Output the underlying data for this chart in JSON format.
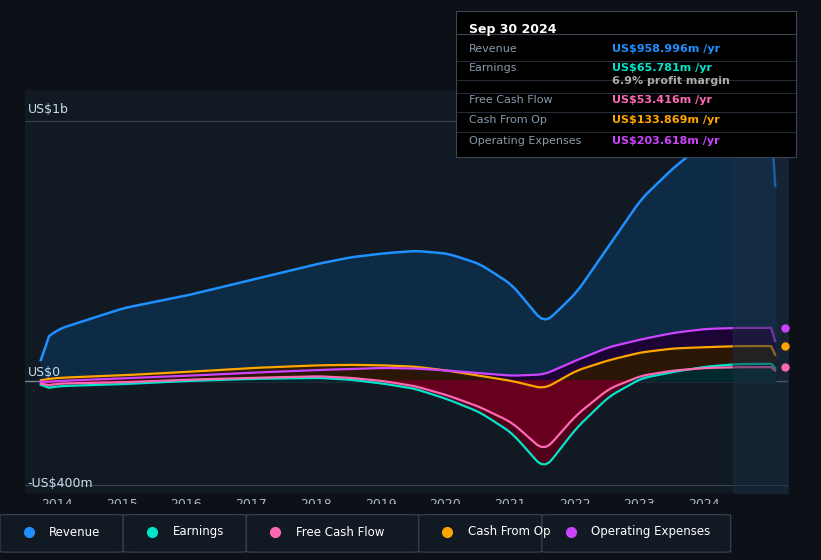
{
  "bg_color": "#0d1117",
  "chart_bg": "#111922",
  "ylabel_top": "US$1b",
  "ylabel_zero": "US$0",
  "ylabel_bottom": "-US$400m",
  "xlim": [
    2013.5,
    2025.3
  ],
  "ylim": [
    -430,
    1120
  ],
  "xtick_labels": [
    "2014",
    "2015",
    "2016",
    "2017",
    "2018",
    "2019",
    "2020",
    "2021",
    "2022",
    "2023",
    "2024"
  ],
  "xtick_positions": [
    2014,
    2015,
    2016,
    2017,
    2018,
    2019,
    2020,
    2021,
    2022,
    2023,
    2024
  ],
  "info_box": {
    "title": "Sep 30 2024",
    "rows": [
      {
        "label": "Revenue",
        "value": "US$958.996m /yr",
        "value_color": "#1e90ff"
      },
      {
        "label": "Earnings",
        "value": "US$65.781m /yr",
        "value_color": "#00e5cc"
      },
      {
        "label": "",
        "value": "6.9% profit margin",
        "value_color": "#aaaaaa"
      },
      {
        "label": "Free Cash Flow",
        "value": "US$53.416m /yr",
        "value_color": "#ff69b4"
      },
      {
        "label": "Cash From Op",
        "value": "US$133.869m /yr",
        "value_color": "#ffa500"
      },
      {
        "label": "Operating Expenses",
        "value": "US$203.618m /yr",
        "value_color": "#cc44ff"
      }
    ]
  },
  "revenue_color": "#1e90ff",
  "earnings_color": "#00e5cc",
  "fcf_color": "#ff69b4",
  "cashfromop_color": "#ffa500",
  "opex_color": "#cc44ff",
  "legend_items": [
    {
      "label": "Revenue",
      "color": "#1e90ff"
    },
    {
      "label": "Earnings",
      "color": "#00e5cc"
    },
    {
      "label": "Free Cash Flow",
      "color": "#ff69b4"
    },
    {
      "label": "Cash From Op",
      "color": "#ffa500"
    },
    {
      "label": "Operating Expenses",
      "color": "#cc44ff"
    }
  ]
}
